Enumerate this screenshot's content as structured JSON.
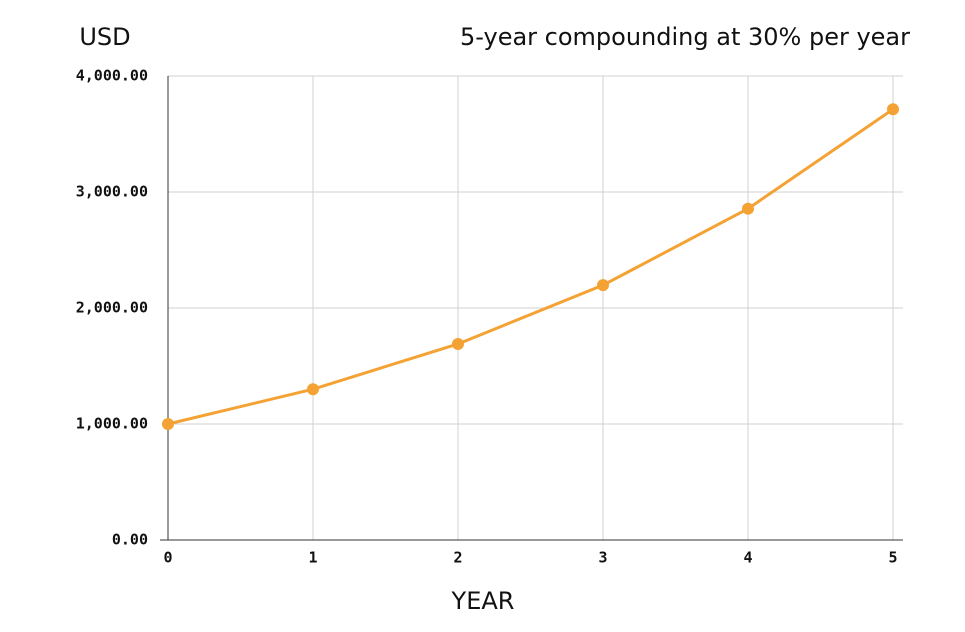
{
  "chart_data": {
    "type": "line",
    "title": "5-year compounding at 30% per year",
    "y_label": "USD",
    "x_label": "YEAR",
    "x": [
      0,
      1,
      2,
      3,
      4,
      5
    ],
    "values": [
      1000,
      1300,
      1690,
      2197,
      2856.1,
      3712.93
    ],
    "color": "#f4a233",
    "xlim": [
      0,
      5
    ],
    "xticks": [
      0,
      1,
      2,
      3,
      4,
      5
    ],
    "ylim": [
      0,
      4000
    ],
    "yticks": [
      {
        "value": 0,
        "label": "0.00"
      },
      {
        "value": 1000,
        "label": "1,000.00"
      },
      {
        "value": 2000,
        "label": "2,000.00"
      },
      {
        "value": 3000,
        "label": "3,000.00"
      },
      {
        "value": 4000,
        "label": "4,000.00"
      }
    ],
    "grid": true
  }
}
